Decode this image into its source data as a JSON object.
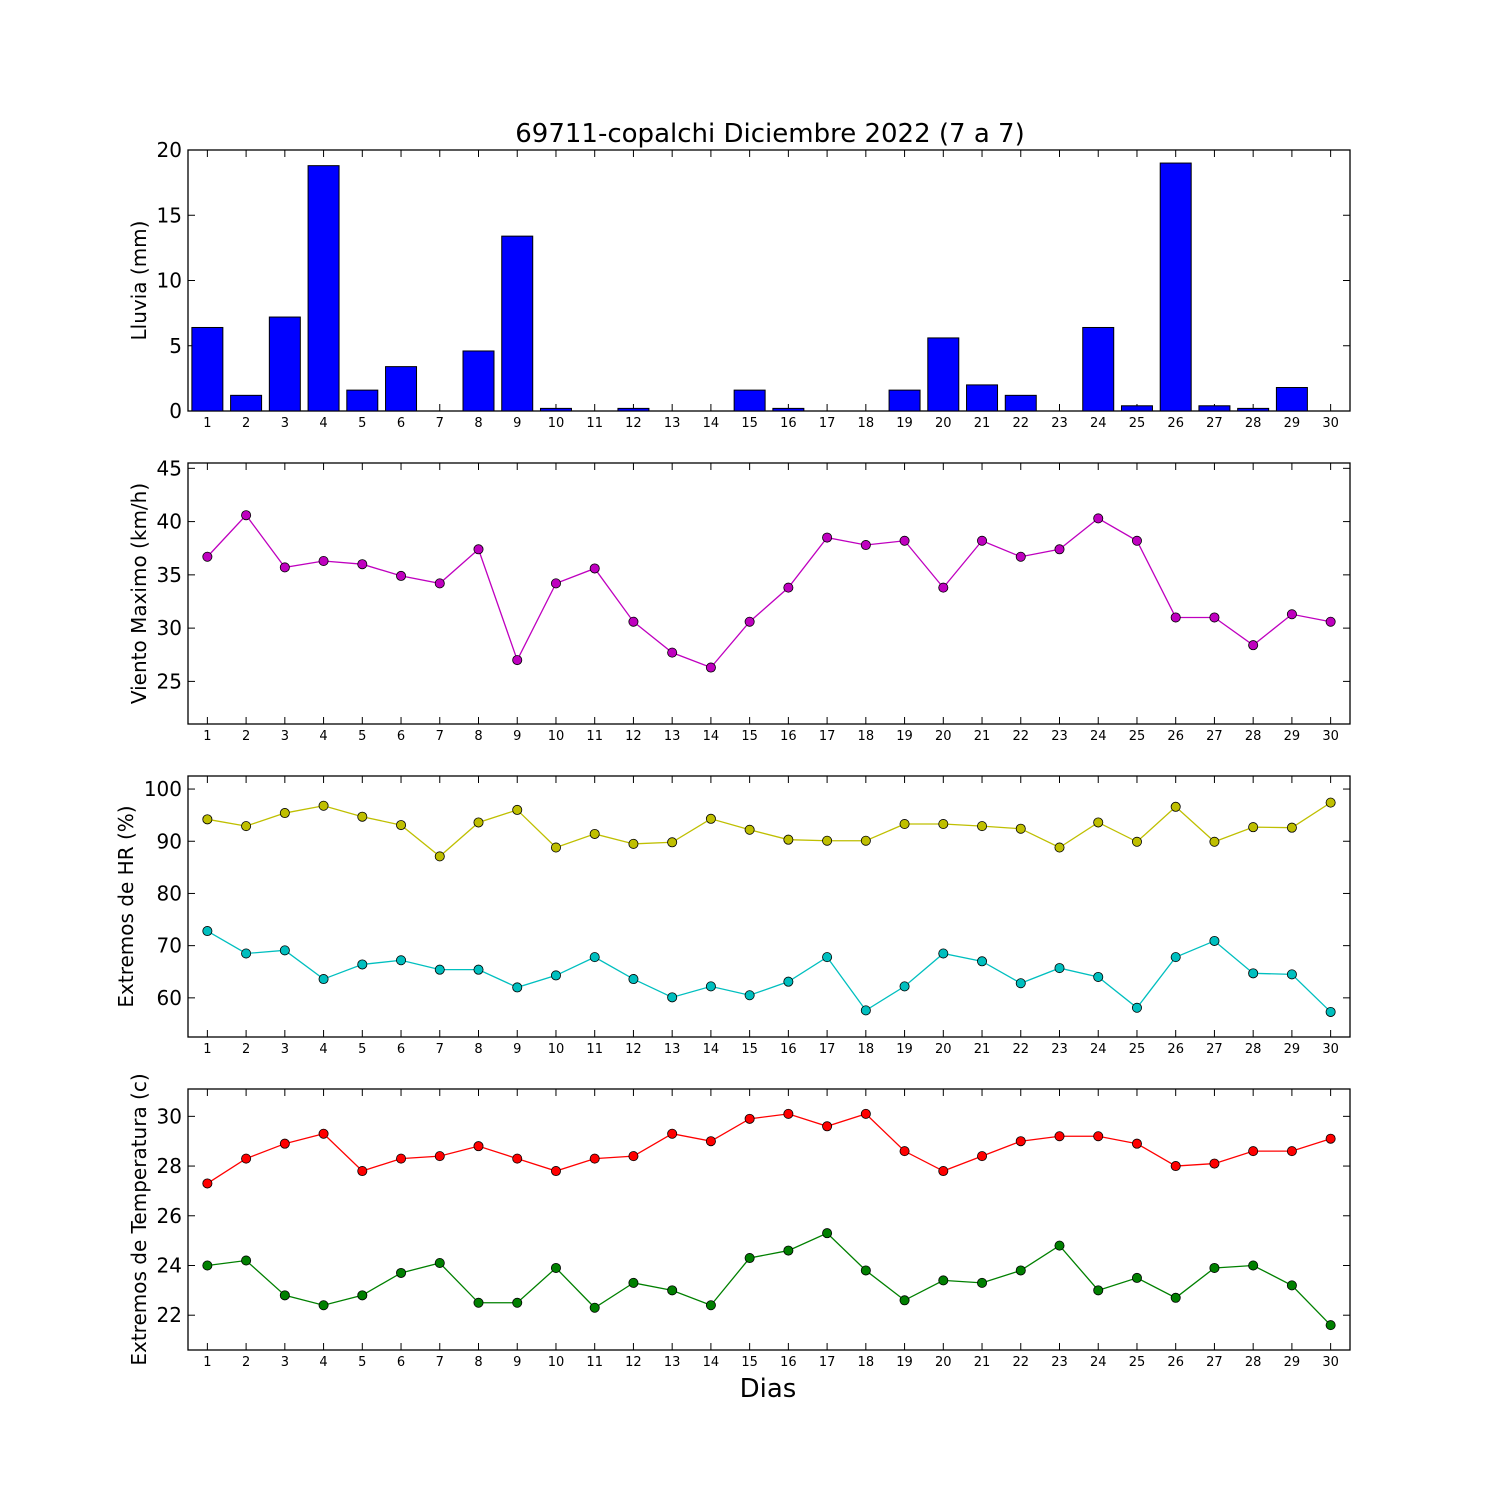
{
  "title": "69711-copalchi Diciembre 2022  (7 a 7)",
  "xlabel": "Dias",
  "chart_data": [
    {
      "type": "bar",
      "ylabel": "Lluvia (mm)",
      "ylim": [
        0,
        20
      ],
      "yticks": [
        0,
        5,
        10,
        15,
        20
      ],
      "xlim": [
        0.5,
        30.5
      ],
      "categories": [
        1,
        2,
        3,
        4,
        5,
        6,
        7,
        8,
        9,
        10,
        11,
        12,
        13,
        14,
        15,
        16,
        17,
        18,
        19,
        20,
        21,
        22,
        23,
        24,
        25,
        26,
        27,
        28,
        29,
        30
      ],
      "series": [
        {
          "color": "#0000ff",
          "values": [
            6.4,
            1.2,
            7.2,
            18.8,
            1.6,
            3.4,
            0,
            4.6,
            13.4,
            0.2,
            0,
            0.2,
            0,
            0,
            1.6,
            0.2,
            0,
            0,
            1.6,
            5.6,
            2.0,
            1.2,
            0,
            6.4,
            0.4,
            19.0,
            0.4,
            0.2,
            1.8,
            0
          ]
        }
      ]
    },
    {
      "type": "line",
      "ylabel": "Viento Maximo (km/h)",
      "ylim": [
        21,
        45.5
      ],
      "yticks": [
        25,
        30,
        35,
        40,
        45
      ],
      "xlim": [
        0.5,
        30.5
      ],
      "x": [
        1,
        2,
        3,
        4,
        5,
        6,
        7,
        8,
        9,
        10,
        11,
        12,
        13,
        14,
        15,
        16,
        17,
        18,
        19,
        20,
        21,
        22,
        23,
        24,
        25,
        26,
        27,
        28,
        29,
        30
      ],
      "series": [
        {
          "color": "#bf00bf",
          "values": [
            36.7,
            40.6,
            35.7,
            36.3,
            36.0,
            34.9,
            34.2,
            37.4,
            27.0,
            34.2,
            35.6,
            30.6,
            27.7,
            26.3,
            30.6,
            33.8,
            38.5,
            37.8,
            38.2,
            33.8,
            38.2,
            36.7,
            37.4,
            40.3,
            38.2,
            31.0,
            31.0,
            28.4,
            31.3,
            30.6
          ]
        }
      ]
    },
    {
      "type": "line",
      "ylabel": "Extremos de HR (%)",
      "ylim": [
        52.5,
        102.5
      ],
      "yticks": [
        60,
        70,
        80,
        90,
        100
      ],
      "xlim": [
        0.5,
        30.5
      ],
      "x": [
        1,
        2,
        3,
        4,
        5,
        6,
        7,
        8,
        9,
        10,
        11,
        12,
        13,
        14,
        15,
        16,
        17,
        18,
        19,
        20,
        21,
        22,
        23,
        24,
        25,
        26,
        27,
        28,
        29,
        30
      ],
      "series": [
        {
          "color": "#bfbf00",
          "values": [
            94.2,
            92.9,
            95.4,
            96.8,
            94.7,
            93.1,
            87.1,
            93.6,
            96.0,
            88.8,
            91.4,
            89.5,
            89.8,
            94.3,
            92.2,
            90.3,
            90.1,
            90.1,
            93.3,
            93.3,
            92.9,
            92.4,
            88.8,
            93.6,
            89.9,
            96.6,
            89.9,
            92.7,
            92.6,
            97.4
          ]
        },
        {
          "color": "#00bfbf",
          "values": [
            72.8,
            68.5,
            69.1,
            63.6,
            66.4,
            67.2,
            65.4,
            65.4,
            62.0,
            64.3,
            67.8,
            63.6,
            60.1,
            62.2,
            60.5,
            63.1,
            67.8,
            57.6,
            62.2,
            68.5,
            67.0,
            62.8,
            65.7,
            64.0,
            58.1,
            67.8,
            70.9,
            64.7,
            64.5,
            57.3
          ]
        }
      ]
    },
    {
      "type": "line",
      "ylabel": "Extremos de Temperatura (c)",
      "ylim": [
        20.6,
        31.1
      ],
      "yticks": [
        22,
        24,
        26,
        28,
        30
      ],
      "xlim": [
        0.5,
        30.5
      ],
      "x": [
        1,
        2,
        3,
        4,
        5,
        6,
        7,
        8,
        9,
        10,
        11,
        12,
        13,
        14,
        15,
        16,
        17,
        18,
        19,
        20,
        21,
        22,
        23,
        24,
        25,
        26,
        27,
        28,
        29,
        30
      ],
      "series": [
        {
          "color": "#ff0000",
          "values": [
            27.3,
            28.3,
            28.9,
            29.3,
            27.8,
            28.3,
            28.4,
            28.8,
            28.3,
            27.8,
            28.3,
            28.4,
            29.3,
            29.0,
            29.9,
            30.1,
            29.6,
            30.1,
            28.6,
            27.8,
            28.4,
            29.0,
            29.2,
            29.2,
            28.9,
            28.0,
            28.1,
            28.6,
            28.6,
            29.1
          ]
        },
        {
          "color": "#008000",
          "values": [
            24.0,
            24.2,
            22.8,
            22.4,
            22.8,
            23.7,
            24.1,
            22.5,
            22.5,
            23.9,
            22.3,
            23.3,
            23.0,
            22.4,
            24.3,
            24.6,
            25.3,
            23.8,
            22.6,
            23.4,
            23.3,
            23.8,
            24.8,
            23.0,
            23.5,
            22.7,
            23.9,
            24.0,
            23.2,
            21.6
          ]
        }
      ]
    }
  ]
}
